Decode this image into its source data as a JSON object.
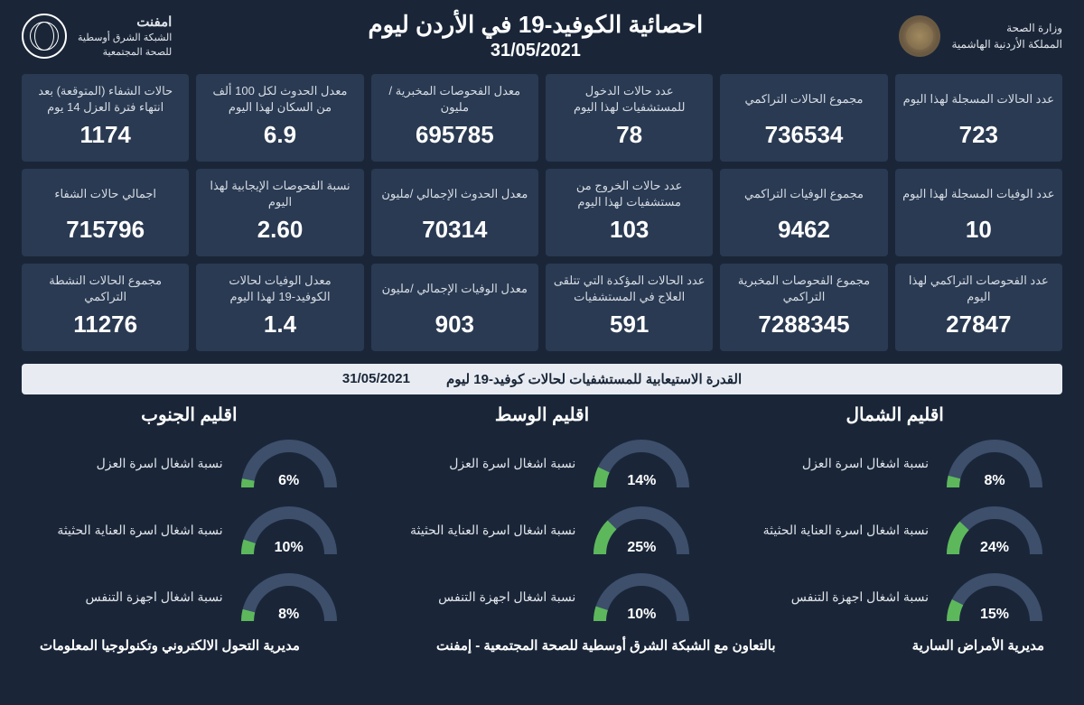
{
  "colors": {
    "background": "#1a2638",
    "card_bg": "#2a3a52",
    "banner_bg": "#e8ecf2",
    "banner_text": "#1a2638",
    "text_primary": "#ffffff",
    "text_secondary": "#d6dce5",
    "gauge_track": "#3d4f6b",
    "gauge_fill": "#5db85c",
    "gauge_stroke_width": 14
  },
  "header": {
    "ministry_line1": "وزارة الصحة",
    "ministry_line2": "المملكة الأردنية الهاشمية",
    "title": "احصائية الكوفيد-19 في الأردن ليوم",
    "date": "31/05/2021",
    "network_line1": "امفنت",
    "network_line2": "الشبكة الشرق أوسطية",
    "network_line3": "للصحة المجتمعية"
  },
  "stats": [
    {
      "label": "عدد الحالات المسجلة لهذا اليوم",
      "value": "723"
    },
    {
      "label": "مجموع الحالات التراكمي",
      "value": "736534"
    },
    {
      "label": "عدد حالات الدخول للمستشفيات لهذا اليوم",
      "value": "78"
    },
    {
      "label": "معدل الفحوصات المخبرية /مليون",
      "value": "695785"
    },
    {
      "label": "معدل الحدوث لكل 100 ألف من السكان لهذا اليوم",
      "value": "6.9"
    },
    {
      "label": "حالات الشفاء (المتوقعة) بعد انتهاء فترة العزل 14 يوم",
      "value": "1174"
    },
    {
      "label": "عدد الوفيات المسجلة لهذا اليوم",
      "value": "10"
    },
    {
      "label": "مجموع الوفيات التراكمي",
      "value": "9462"
    },
    {
      "label": "عدد حالات الخروج من مستشفيات لهذا اليوم",
      "value": "103"
    },
    {
      "label": "معدل الحدوث الإجمالي /مليون",
      "value": "70314"
    },
    {
      "label": "نسبة الفحوصات الإيجابية لهذا اليوم",
      "value": "2.60"
    },
    {
      "label": "اجمالي حالات الشفاء",
      "value": "715796"
    },
    {
      "label": "عدد الفحوصات التراكمي لهذا اليوم",
      "value": "27847"
    },
    {
      "label": "مجموع الفحوصات المخبرية التراكمي",
      "value": "7288345"
    },
    {
      "label": "عدد الحالات المؤكدة التي تتلقى العلاج في المستشفيات",
      "value": "591"
    },
    {
      "label": "معدل الوفيات الإجمالي /مليون",
      "value": "903"
    },
    {
      "label": "معدل الوفيات لحالات الكوفيد-19 لهذا اليوم",
      "value": "1.4"
    },
    {
      "label": "مجموع الحالات النشطة التراكمي",
      "value": "11276"
    }
  ],
  "capacity_banner": {
    "text": "القدرة الاستيعابية للمستشفيات لحالات كوفيد-19 ليوم",
    "date": "31/05/2021"
  },
  "gauge_labels": {
    "isolation": "نسبة اشغال اسرة العزل",
    "icu": "نسبة اشغال اسرة العناية الحثيثة",
    "ventilator": "نسبة اشغال اجهزة التنفس"
  },
  "regions": [
    {
      "name": "اقليم الشمال",
      "isolation": 8,
      "icu": 24,
      "ventilator": 15
    },
    {
      "name": "اقليم الوسط",
      "isolation": 14,
      "icu": 25,
      "ventilator": 10
    },
    {
      "name": "اقليم الجنوب",
      "isolation": 6,
      "icu": 10,
      "ventilator": 8
    }
  ],
  "footer": {
    "right": "مديرية الأمراض السارية",
    "center": "بالتعاون مع الشبكة الشرق أوسطية للصحة المجتمعية - إمفنت",
    "left": "مديرية التحول الالكتروني وتكنولوجيا المعلومات"
  }
}
